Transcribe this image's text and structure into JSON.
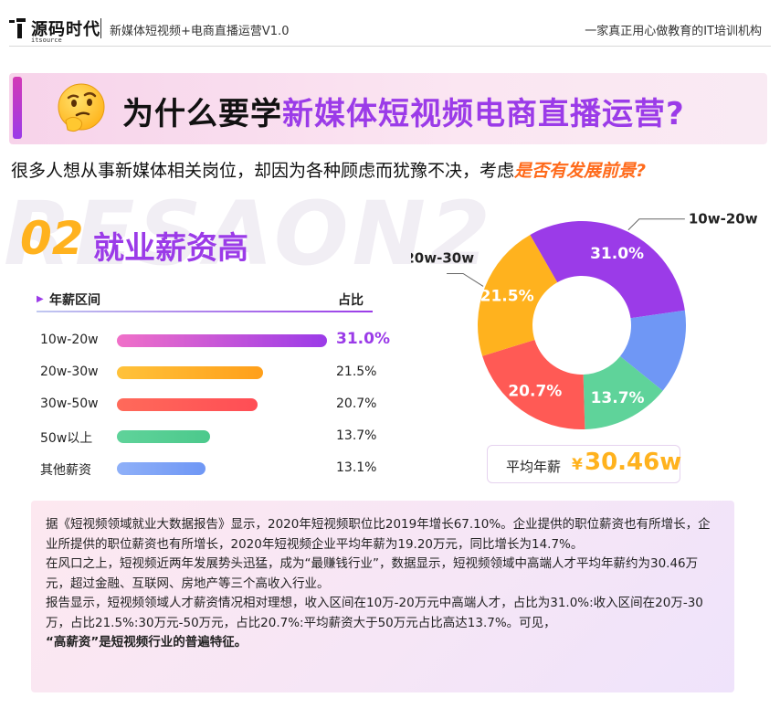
{
  "header": {
    "logo_text": "源码时代",
    "logo_sub": "itsource",
    "course_title": "新媒体短视频+电商直播运营V1.0",
    "slogan": "一家真正用心做教育的IT培训机构"
  },
  "banner": {
    "title_plain": "为什么要学",
    "title_highlight": "新媒体短视频电商直播运营?"
  },
  "intro": {
    "text": "很多人想从事新媒体相关岗位，却因为各种顾虑而犹豫不决，考虑",
    "emphasis": "是否有发展前景?"
  },
  "section": {
    "watermark": "RESAON2",
    "number": "02",
    "title": "就业薪资高"
  },
  "table": {
    "col_range": "年薪区间",
    "col_share": "占比"
  },
  "chart_data": {
    "type": "bar",
    "categories": [
      "10w-20w",
      "20w-30w",
      "30w-50w",
      "50w以上",
      "其他薪资"
    ],
    "values": [
      31.0,
      21.5,
      20.7,
      13.7,
      13.1
    ],
    "value_labels": [
      "31.0%",
      "21.5%",
      "20.7%",
      "13.7%",
      "13.1%"
    ],
    "colors": [
      "#f070c8",
      "#ffb21e",
      "#ff5a55",
      "#5fd39a",
      "#7d9cf5"
    ],
    "pie": {
      "type": "pie",
      "slices": [
        {
          "label": "10w-20w",
          "value": 31.0,
          "text": "31.0%",
          "color": "#9b3be8",
          "show_text": true,
          "callout": true
        },
        {
          "label": "其他薪资",
          "value": 13.1,
          "text": "13.1%",
          "color": "#6f97f5",
          "show_text": false,
          "callout": false
        },
        {
          "label": "50w以上",
          "value": 13.7,
          "text": "13.7%",
          "color": "#5fd39a",
          "show_text": true,
          "callout": false
        },
        {
          "label": "30w-50w",
          "value": 20.7,
          "text": "20.7%",
          "color": "#ff5a55",
          "show_text": true,
          "callout": false
        },
        {
          "label": "20w-30w",
          "value": 21.5,
          "text": "21.5%",
          "color": "#ffb21e",
          "show_text": true,
          "callout": true
        }
      ]
    }
  },
  "average": {
    "label": "平均年薪",
    "currency": "¥",
    "value": "30.46w"
  },
  "report": {
    "p1": "据《短视频领域就业大数据报告》显示，2020年短视频职位比2019年增长67.10%。企业提供的职位薪资也有所增长，企业所提供的职位薪资也有所增长，2020年短视频企业平均年薪为19.20万元，同比增长为14.7%。",
    "p2": "在风口之上，短视频近两年发展势头迅猛，成为“最赚钱行业”，数据显示，短视频领域中高端人才平均年薪约为30.46万元，超过金融、互联网、房地产等三个高收入行业。",
    "p3": "报告显示，短视频领域人才薪资情况相对理想，收入区间在10万-20万元中高端人才，占比为31.0%:收入区间在20万-30万，占比21.5%:30万元-50万元，占比20.7%:平均薪资大于50万元占比高达13.7%。可见，",
    "p3_strong": "“高薪资”是短视频行业的普遍特征。"
  }
}
